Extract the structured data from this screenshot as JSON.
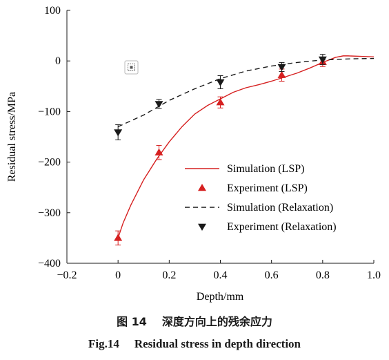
{
  "chart_data": {
    "type": "line",
    "xlabel": "Depth/mm",
    "ylabel": "Residual stress/MPa",
    "xlim": [
      -0.2,
      1.0
    ],
    "ylim": [
      -400,
      100
    ],
    "xticks": [
      -0.2,
      0,
      0.2,
      0.4,
      0.6,
      0.8,
      1.0
    ],
    "xtick_labels": [
      "−0.2",
      "0",
      "0.2",
      "0.4",
      "0.6",
      "0.8",
      "1.0"
    ],
    "yticks": [
      -400,
      -300,
      -200,
      -100,
      0,
      100
    ],
    "ytick_labels": [
      "−400",
      "−300",
      "−200",
      "−100",
      "0",
      "100"
    ],
    "grid": false,
    "legend_position": "right",
    "series": [
      {
        "name": "Simulation (LSP)",
        "style": "solid-line",
        "color": "#d62020",
        "x": [
          0,
          0.02,
          0.05,
          0.1,
          0.15,
          0.2,
          0.25,
          0.3,
          0.35,
          0.4,
          0.45,
          0.5,
          0.55,
          0.6,
          0.65,
          0.7,
          0.75,
          0.8,
          0.85,
          0.88,
          0.9,
          0.95,
          1.0
        ],
        "y": [
          -350,
          -320,
          -285,
          -235,
          -195,
          -160,
          -130,
          -105,
          -88,
          -75,
          -62,
          -53,
          -47,
          -40,
          -32,
          -24,
          -14,
          -3,
          7,
          10,
          10,
          9,
          8
        ]
      },
      {
        "name": "Experiment (LSP)",
        "style": "marker-triangle-up",
        "color": "#d62020",
        "x": [
          0,
          0.16,
          0.4,
          0.64,
          0.8
        ],
        "y": [
          -350,
          -181,
          -82,
          -28,
          -2
        ],
        "err": [
          14,
          14,
          11,
          12,
          9
        ]
      },
      {
        "name": "Simulation (Relaxation)",
        "style": "dashed-line",
        "color": "#1a1a1a",
        "x": [
          0,
          0.1,
          0.2,
          0.3,
          0.4,
          0.5,
          0.6,
          0.7,
          0.8,
          0.9,
          1.0
        ],
        "y": [
          -130,
          -107,
          -78,
          -55,
          -35,
          -20,
          -10,
          -3,
          2,
          4,
          5
        ]
      },
      {
        "name": "Experiment (Relaxation)",
        "style": "marker-triangle-down",
        "color": "#1a1a1a",
        "x": [
          0,
          0.16,
          0.4,
          0.64,
          0.8
        ],
        "y": [
          -141,
          -85,
          -42,
          -12,
          3
        ],
        "err": [
          15,
          9,
          13,
          9,
          10
        ]
      }
    ]
  },
  "caption": {
    "cn_label": "图 14",
    "cn_text": "深度方向上的残余应力",
    "en_label": "Fig.14",
    "en_text": "Residual stress in depth direction"
  }
}
